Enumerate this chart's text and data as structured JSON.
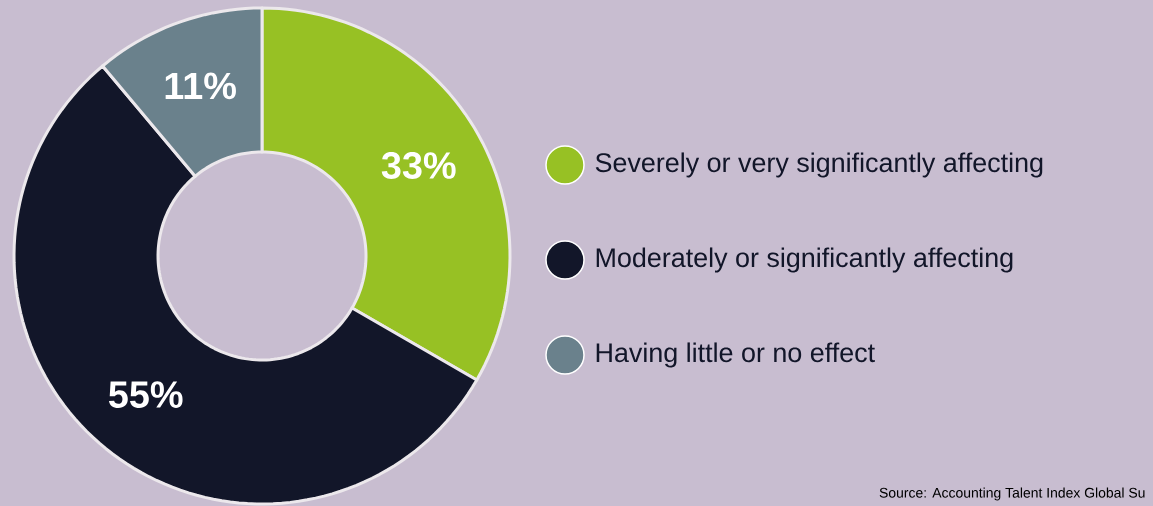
{
  "chart_data": {
    "type": "donut",
    "categories": [
      "Severely or very significantly affecting",
      "Moderately or significantly affecting",
      "Having little or no effect"
    ],
    "values": [
      33,
      55,
      11
    ],
    "colors": [
      "#97c124",
      "#121629",
      "#6a818c"
    ],
    "value_labels": [
      "33%",
      "55%",
      "11%"
    ],
    "legend": "right",
    "annotations": [
      "Source: Accounting Talent Index Global Su"
    ]
  }
}
